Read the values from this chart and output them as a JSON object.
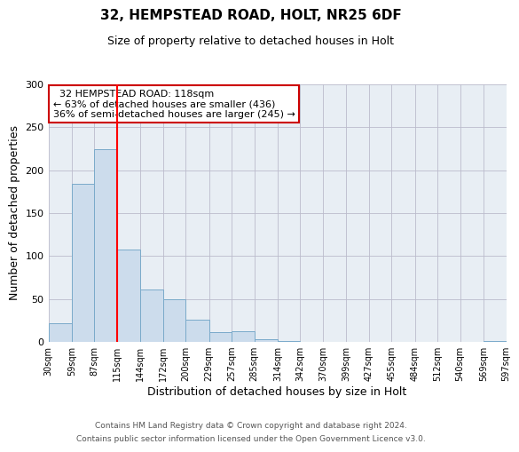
{
  "title": "32, HEMPSTEAD ROAD, HOLT, NR25 6DF",
  "subtitle": "Size of property relative to detached houses in Holt",
  "xlabel": "Distribution of detached houses by size in Holt",
  "ylabel": "Number of detached properties",
  "bar_color": "#ccdcec",
  "bar_edge_color": "#7aaaca",
  "bin_edges": [
    30,
    59,
    87,
    115,
    144,
    172,
    200,
    229,
    257,
    285,
    314,
    342,
    370,
    399,
    427,
    455,
    484,
    512,
    540,
    569,
    597
  ],
  "bar_heights": [
    22,
    184,
    224,
    108,
    61,
    50,
    26,
    11,
    12,
    3,
    1,
    0,
    0,
    0,
    0,
    0,
    0,
    0,
    0,
    1
  ],
  "red_line_x": 115,
  "ylim": [
    0,
    300
  ],
  "yticks": [
    0,
    50,
    100,
    150,
    200,
    250,
    300
  ],
  "annotation_text": "  32 HEMPSTEAD ROAD: 118sqm  \n← 63% of detached houses are smaller (436)\n36% of semi-detached houses are larger (245) →",
  "annotation_box_color": "#ffffff",
  "annotation_border_color": "#cc0000",
  "footer_line1": "Contains HM Land Registry data © Crown copyright and database right 2024.",
  "footer_line2": "Contains public sector information licensed under the Open Government Licence v3.0.",
  "bg_color": "#e8eef4"
}
